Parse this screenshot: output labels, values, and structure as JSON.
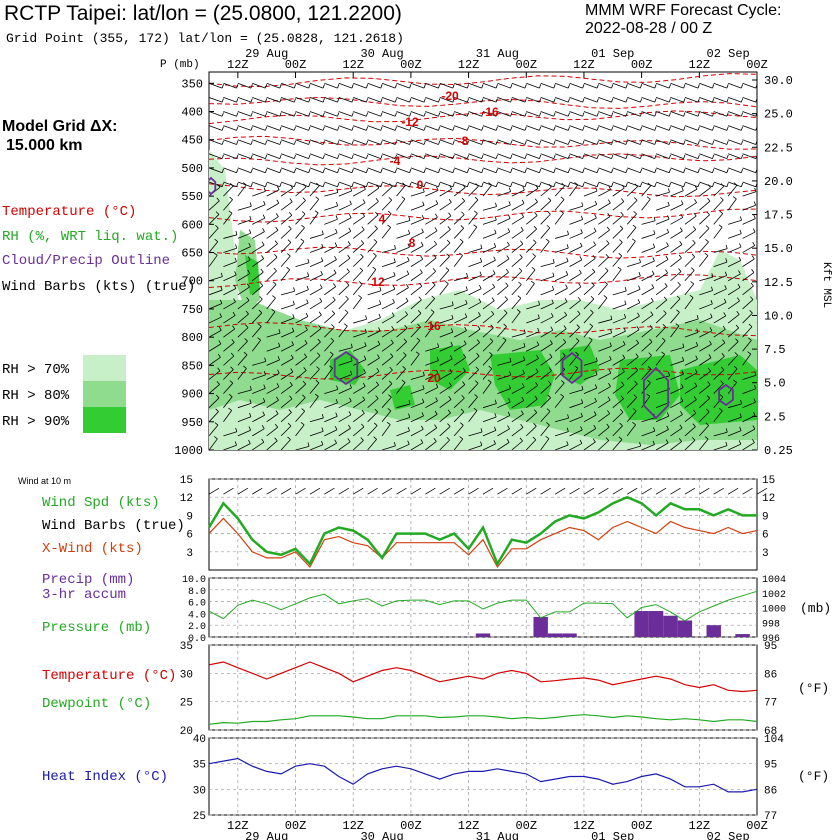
{
  "header": {
    "title": "RCTP Taipei:  lat/lon = (25.0800, 121.2200)",
    "subtitle": "Grid Point (355, 172) lat/lon = (25.0828, 121.2618)",
    "cycle_label": "MMM WRF Forecast Cycle:",
    "cycle_value": "2022-08-28 / 00  Z",
    "model_grid_label": "Model Grid ΔX:",
    "model_grid_value": "15.000 km"
  },
  "colors": {
    "temperature": "#d40000",
    "rh": "#22aa22",
    "cloud": "#6a2d9a",
    "barb": "#000000",
    "xwind": "#d04010",
    "heat": "#1a1ab0",
    "rh70": "#c8f0c8",
    "rh80": "#8fdc8f",
    "rh90": "#33cc33"
  },
  "legend": {
    "temperature": "Temperature (°C)",
    "rh": "RH (%, WRT liq. wat.)",
    "cloud": "Cloud/Precip Outline",
    "barbs": "Wind Barbs (kts) (true)",
    "rh70": "RH > 70%",
    "rh80": "RH > 80%",
    "rh90": "RH > 90%"
  },
  "chart_data": [
    {
      "type": "heatmap",
      "name": "time-height cross section",
      "ylabel": "P (mb)",
      "right_label": "Kft MSL",
      "pressure_ticks": [
        350,
        400,
        450,
        500,
        550,
        600,
        650,
        700,
        750,
        800,
        850,
        900,
        950,
        1000
      ],
      "height_ticks": [
        "30.0",
        "25.0",
        "22.5",
        "20.0",
        "17.5",
        "15.0",
        "12.5",
        "10.0",
        "7.5",
        "5.0",
        "2.5",
        "0.25"
      ],
      "time_top_labels": [
        "12Z",
        "00Z",
        "12Z",
        "00Z",
        "12Z",
        "00Z",
        "12Z",
        "00Z",
        "12Z",
        "00Z"
      ],
      "date_labels": [
        "29 Aug",
        "30 Aug",
        "31 Aug",
        "01 Sep",
        "02 Sep"
      ],
      "temperature_contour_labels": [
        "-20",
        "-16",
        "-12",
        "-8",
        "-4",
        "0",
        "4",
        "8",
        "12",
        "16",
        "20"
      ]
    },
    {
      "type": "line",
      "name": "surface wind",
      "subtitle": "Wind at 10 m",
      "series_labels": [
        "Wind Spd (kts)",
        "Wind Barbs (true)",
        "X-Wind (kts)"
      ],
      "y_ticks": [
        "3",
        "6",
        "9",
        "12",
        "15"
      ],
      "ylim": [
        0,
        15
      ],
      "wind_speed": [
        7,
        11,
        8.5,
        5,
        3,
        2.5,
        3.5,
        1,
        6,
        7,
        6.5,
        5,
        2,
        6,
        6,
        6,
        5,
        6,
        3.5,
        7,
        1,
        5,
        4.5,
        6,
        8,
        9,
        8.5,
        9.5,
        11,
        12,
        11,
        9,
        11,
        10,
        10,
        9,
        10,
        9,
        9
      ],
      "x_wind": [
        6,
        8.5,
        6,
        3,
        2,
        2,
        3,
        0.5,
        5,
        5.5,
        4.5,
        4,
        2,
        4.5,
        4.5,
        4.5,
        4.5,
        4.5,
        2.5,
        5,
        0.5,
        3.5,
        3.5,
        5,
        6,
        7,
        6.5,
        5,
        7,
        8,
        7,
        6,
        8,
        7,
        6.5,
        6,
        7,
        6,
        6.5
      ]
    },
    {
      "type": "bar",
      "name": "precip and pressure",
      "series_labels": [
        "Precip (mm)",
        "3-hr accum",
        "Pressure (mb)"
      ],
      "left_ticks": [
        "0.0",
        "2.0",
        "4.0",
        "6.0",
        "8.0",
        "10.0"
      ],
      "right_ticks": [
        "996",
        "998",
        "1000",
        "1002",
        "1004"
      ],
      "right_unit": "(mb)",
      "pressure_ylim": [
        996,
        1004
      ],
      "precip": [
        0,
        0,
        0,
        0,
        0,
        0,
        0,
        0,
        0,
        0,
        0,
        0,
        0,
        0,
        0,
        0,
        0,
        0,
        0,
        0.6,
        0,
        0,
        0,
        3.4,
        0.6,
        0.6,
        0,
        0,
        0,
        0,
        4.4,
        4.4,
        3.6,
        2.8,
        0,
        2,
        0,
        0.5,
        0
      ],
      "pressure": [
        999.5,
        998.5,
        1000.3,
        1001.0,
        1000.5,
        999.7,
        1000.5,
        1001.3,
        1001.8,
        1000.5,
        1000.9,
        1001.2,
        1000.2,
        1000.9,
        1001.0,
        1001.0,
        1000.4,
        1000.9,
        1000.9,
        999.8,
        1000.6,
        1001.0,
        1001.0,
        998.6,
        999.4,
        999.4,
        1000.6,
        1000.6,
        1000.5,
        998.6,
        1000.0,
        1000.4,
        999.4,
        998.2,
        999.4,
        1000.2,
        1001.0,
        1001.6,
        1002.2
      ]
    },
    {
      "type": "line",
      "name": "temperature and dewpoint",
      "series_labels": [
        "Temperature (°C)",
        "Dewpoint (°C)"
      ],
      "left_ticks": [
        "20",
        "25",
        "30",
        "35"
      ],
      "right_ticks": [
        "68",
        "77",
        "86",
        "95"
      ],
      "right_unit": "(°F)",
      "ylim": [
        20,
        35
      ],
      "temperature": [
        31.5,
        32.0,
        31.0,
        30.0,
        29.0,
        30.0,
        31.0,
        32.0,
        31.0,
        30.0,
        28.5,
        29.5,
        30.5,
        31.0,
        30.5,
        29.5,
        28.5,
        29.0,
        29.5,
        29.0,
        30.0,
        30.5,
        30.0,
        28.5,
        28.7,
        29.0,
        29.2,
        28.8,
        28.0,
        28.5,
        29.0,
        29.5,
        29.0,
        28.0,
        27.5,
        28.0,
        27.0,
        26.8,
        27.0
      ],
      "dewpoint": [
        21.0,
        21.3,
        21.2,
        21.5,
        21.5,
        21.8,
        22.0,
        22.5,
        22.5,
        22.5,
        22.3,
        22.0,
        22.0,
        22.5,
        22.5,
        22.5,
        22.2,
        22.3,
        22.5,
        22.5,
        22.3,
        22.0,
        22.2,
        22.0,
        22.2,
        22.5,
        22.7,
        22.5,
        22.2,
        22.5,
        22.3,
        22.0,
        21.8,
        22.0,
        21.8,
        21.5,
        21.8,
        21.8,
        21.5
      ]
    },
    {
      "type": "line",
      "name": "heat index",
      "series_labels": [
        "Heat Index (°C)"
      ],
      "left_ticks": [
        "25",
        "30",
        "35",
        "40"
      ],
      "right_ticks": [
        "77",
        "86",
        "95",
        "104"
      ],
      "right_unit": "(°F)",
      "ylim": [
        25,
        40
      ],
      "heat_index": [
        35.0,
        35.5,
        36.0,
        34.5,
        33.5,
        33.0,
        34.5,
        35.0,
        34.5,
        32.5,
        31.0,
        33.0,
        34.0,
        34.5,
        34.0,
        33.0,
        32.0,
        33.0,
        33.5,
        33.5,
        34.0,
        33.5,
        33.0,
        31.5,
        32.0,
        32.5,
        32.5,
        32.0,
        31.0,
        31.5,
        32.5,
        33.0,
        32.0,
        30.5,
        30.5,
        31.0,
        29.5,
        29.5,
        30.0
      ]
    }
  ],
  "bottom_axis": {
    "time_labels": [
      "12Z",
      "00Z",
      "12Z",
      "00Z",
      "12Z",
      "00Z",
      "12Z",
      "00Z",
      "12Z",
      "00Z"
    ],
    "date_labels": [
      "29 Aug",
      "30 Aug",
      "31 Aug",
      "01 Sep",
      "02 Sep"
    ]
  }
}
